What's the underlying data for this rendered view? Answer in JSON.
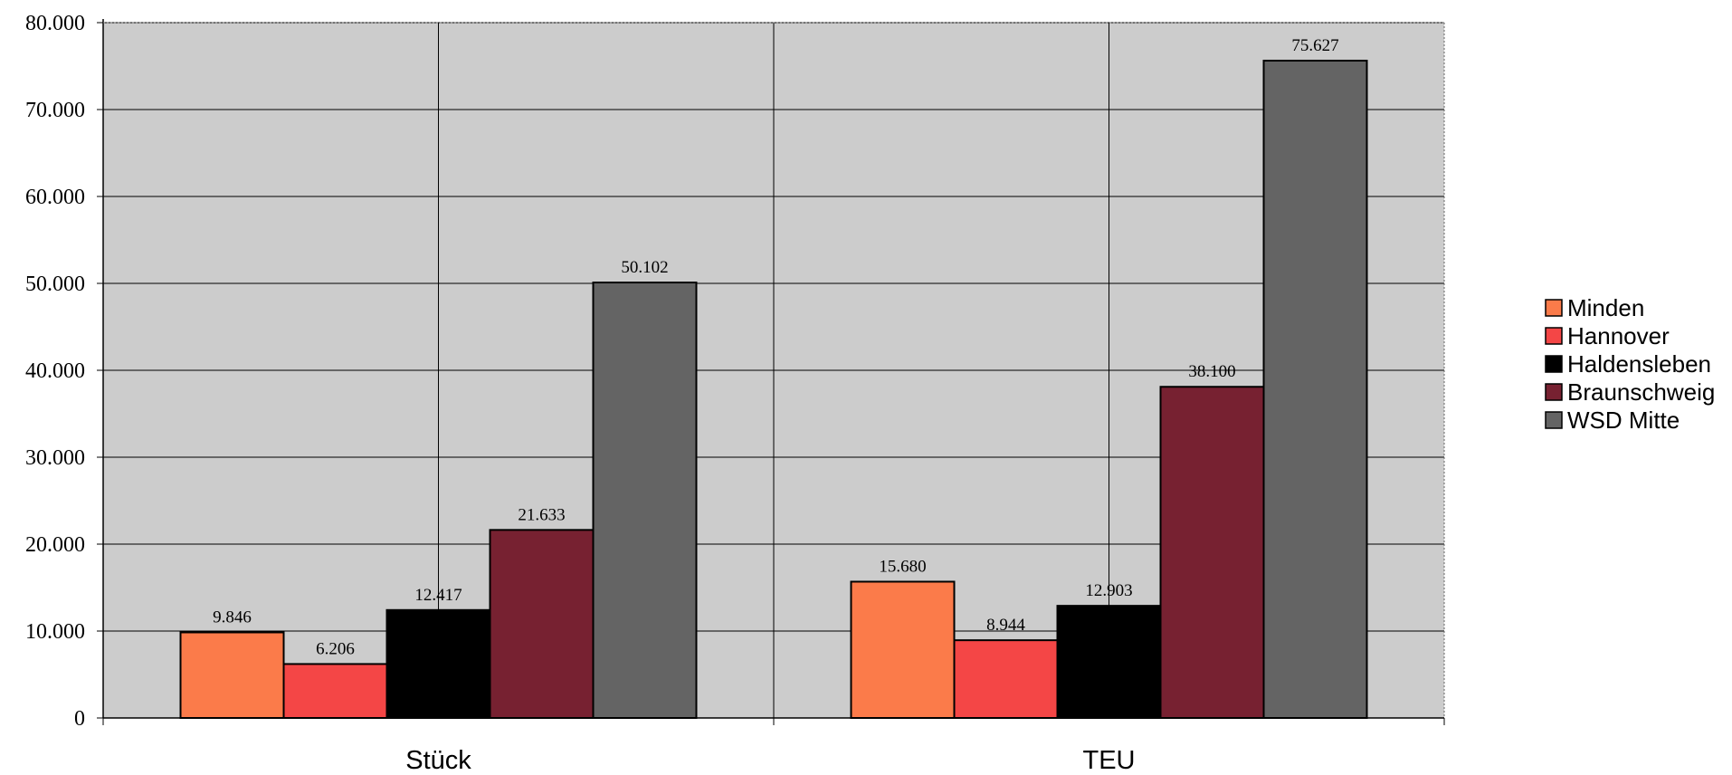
{
  "chart_data": {
    "type": "bar",
    "categories": [
      "Stück",
      "TEU"
    ],
    "series": [
      {
        "name": "Minden",
        "color": "#FB7B4A",
        "values": [
          9846,
          15680
        ]
      },
      {
        "name": "Hannover",
        "color": "#F44646",
        "values": [
          6206,
          8944
        ]
      },
      {
        "name": "Haldensleben",
        "color": "#000000",
        "values": [
          12417,
          12903
        ]
      },
      {
        "name": "Braunschweig",
        "color": "#772131",
        "values": [
          21633,
          38100
        ]
      },
      {
        "name": "WSD Mitte",
        "color": "#646464",
        "values": [
          50102,
          75627
        ]
      }
    ],
    "data_labels": [
      [
        "9.846",
        "15.680"
      ],
      [
        "6.206",
        "8.944"
      ],
      [
        "12.417",
        "12.903"
      ],
      [
        "21.633",
        "38.100"
      ],
      [
        "50.102",
        "75.627"
      ]
    ],
    "yticks": [
      "0",
      "10.000",
      "20.000",
      "30.000",
      "40.000",
      "50.000",
      "60.000",
      "70.000",
      "80.000"
    ],
    "ylim": [
      0,
      80000
    ],
    "title": "",
    "xlabel": "",
    "ylabel": "",
    "grid": true,
    "legend_position": "right",
    "plot_background": "#CCCCCC"
  }
}
